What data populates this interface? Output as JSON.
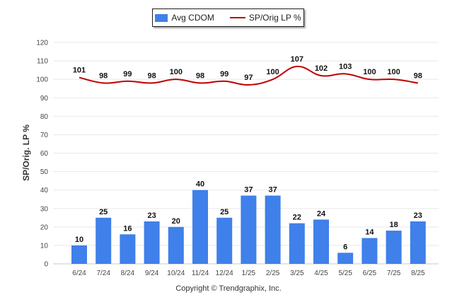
{
  "chart_data": {
    "type": "bar+line",
    "categories": [
      "6/24",
      "7/24",
      "8/24",
      "9/24",
      "10/24",
      "11/24",
      "12/24",
      "1/25",
      "2/25",
      "3/25",
      "4/25",
      "5/25",
      "6/25",
      "7/25",
      "8/25"
    ],
    "series": [
      {
        "name": "Avg CDOM",
        "type": "bar",
        "color": "#3f80ea",
        "values": [
          10,
          25,
          16,
          23,
          20,
          40,
          25,
          37,
          37,
          22,
          24,
          6,
          14,
          18,
          23
        ]
      },
      {
        "name": "SP/Orig LP %",
        "type": "line",
        "color": "#c00000",
        "values": [
          101,
          98,
          99,
          98,
          100,
          98,
          99,
          97,
          100,
          107,
          102,
          103,
          100,
          100,
          98
        ]
      }
    ],
    "ylabel": "SP/Orig. LP %",
    "ylim": [
      0,
      120
    ],
    "yticks": [
      0,
      10,
      20,
      30,
      40,
      50,
      60,
      70,
      80,
      90,
      100,
      110,
      120
    ],
    "grid": true,
    "legend_position": "top-center"
  },
  "copyright": "Copyright © Trendgraphix, Inc."
}
